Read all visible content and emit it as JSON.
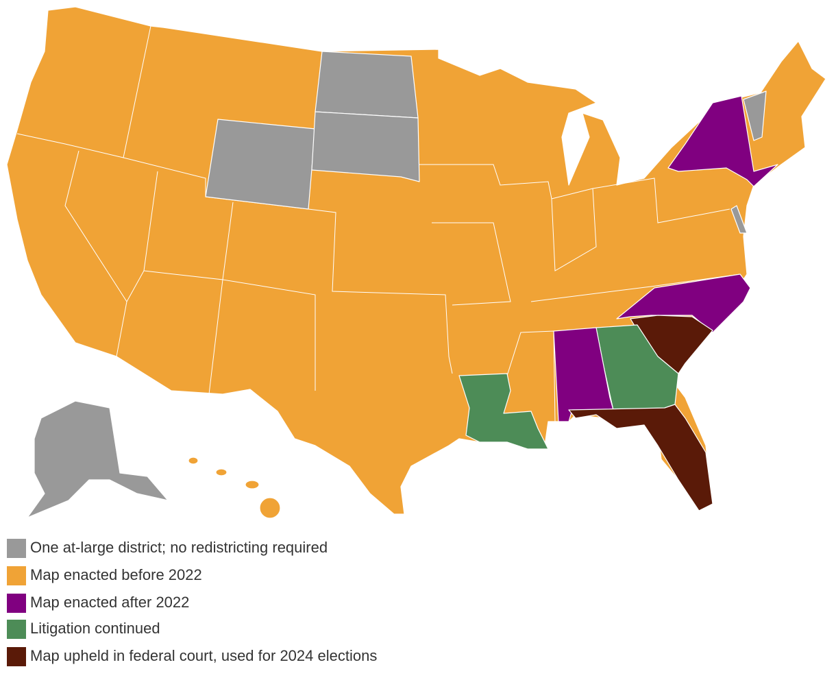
{
  "legend": {
    "items": [
      {
        "label": "One at-large district; no redistricting required",
        "color": "#999999"
      },
      {
        "label": "Map enacted before 2022",
        "color": "#f0a336"
      },
      {
        "label": "Map enacted after 2022",
        "color": "#800080"
      },
      {
        "label": "Litigation continued",
        "color": "#4d8c57"
      },
      {
        "label": "Map upheld in federal court, used for 2024 elections",
        "color": "#5a1a08"
      }
    ]
  }
}
